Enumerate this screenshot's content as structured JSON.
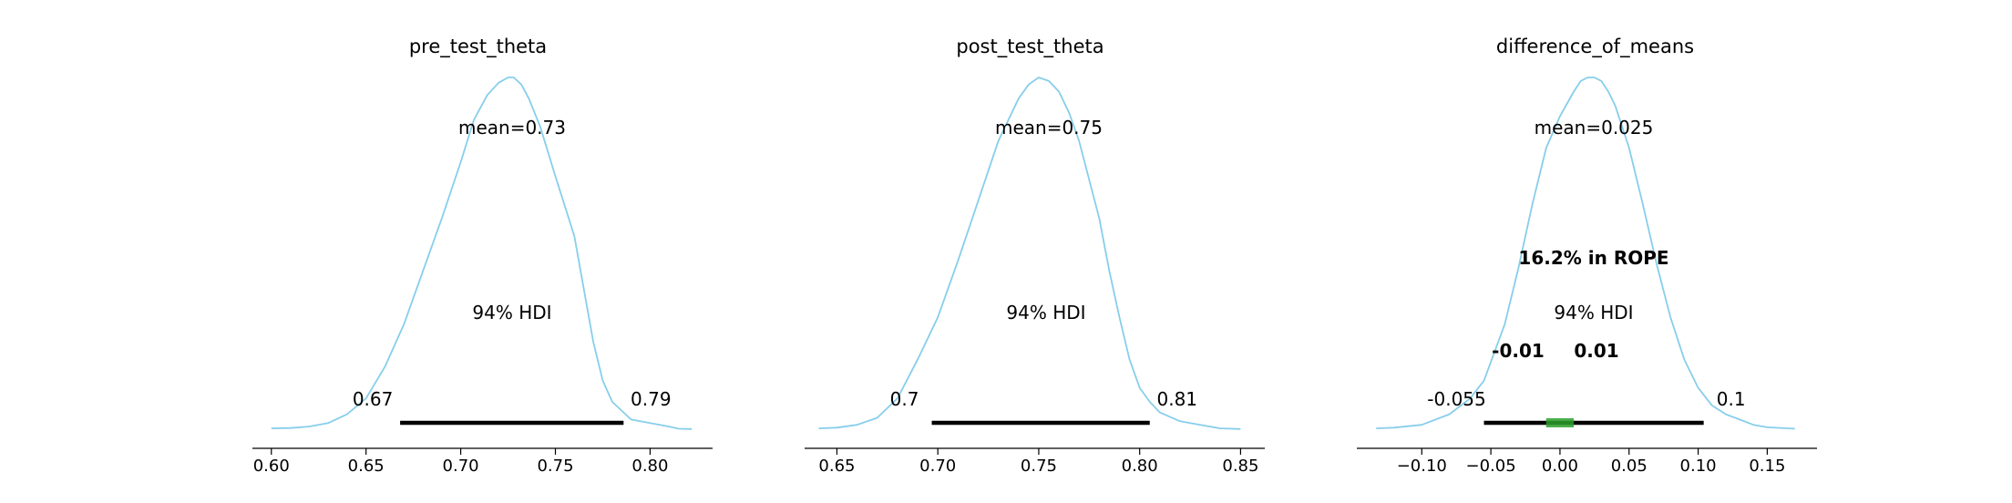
{
  "colors": {
    "density": "#87ceeb",
    "hdi": "#000000",
    "rope": "#2ca02c",
    "axis": "#000000"
  },
  "chart_data": [
    {
      "type": "area",
      "title": "pre_test_theta",
      "xlim": [
        0.59,
        0.833
      ],
      "xticks": [
        0.6,
        0.65,
        0.7,
        0.75,
        0.8
      ],
      "xtick_labels": [
        "0.60",
        "0.65",
        "0.70",
        "0.75",
        "0.80"
      ],
      "mean_label": "mean=0.73",
      "hdi_label": "94% HDI",
      "hdi": [
        0.668,
        0.786
      ],
      "hdi_labels": [
        "0.67",
        "0.79"
      ],
      "density": {
        "x": [
          0.6,
          0.61,
          0.62,
          0.63,
          0.64,
          0.65,
          0.66,
          0.67,
          0.68,
          0.69,
          0.7,
          0.707,
          0.714,
          0.72,
          0.725,
          0.728,
          0.732,
          0.736,
          0.742,
          0.75,
          0.76,
          0.765,
          0.77,
          0.775,
          0.78,
          0.786,
          0.79,
          0.8,
          0.81,
          0.815,
          0.822
        ],
        "y": [
          0.005,
          0.006,
          0.01,
          0.02,
          0.045,
          0.09,
          0.18,
          0.3,
          0.45,
          0.6,
          0.76,
          0.88,
          0.95,
          0.985,
          1.0,
          1.0,
          0.98,
          0.94,
          0.86,
          0.72,
          0.55,
          0.4,
          0.25,
          0.14,
          0.08,
          0.05,
          0.03,
          0.02,
          0.01,
          0.004,
          0.003
        ]
      }
    },
    {
      "type": "area",
      "title": "post_test_theta",
      "xlim": [
        0.634,
        0.862
      ],
      "xticks": [
        0.65,
        0.7,
        0.75,
        0.8,
        0.85
      ],
      "xtick_labels": [
        "0.65",
        "0.70",
        "0.75",
        "0.80",
        "0.85"
      ],
      "mean_label": "mean=0.75",
      "hdi_label": "94% HDI",
      "hdi": [
        0.697,
        0.805
      ],
      "hdi_labels": [
        "0.7",
        "0.81"
      ],
      "density": {
        "x": [
          0.641,
          0.65,
          0.66,
          0.67,
          0.68,
          0.69,
          0.7,
          0.71,
          0.72,
          0.73,
          0.74,
          0.745,
          0.75,
          0.755,
          0.76,
          0.765,
          0.77,
          0.78,
          0.785,
          0.79,
          0.795,
          0.8,
          0.805,
          0.81,
          0.82,
          0.83,
          0.84,
          0.85
        ],
        "y": [
          0.005,
          0.007,
          0.015,
          0.035,
          0.09,
          0.2,
          0.32,
          0.48,
          0.65,
          0.82,
          0.94,
          0.98,
          1.0,
          0.99,
          0.96,
          0.9,
          0.82,
          0.6,
          0.45,
          0.32,
          0.2,
          0.12,
          0.08,
          0.05,
          0.025,
          0.015,
          0.005,
          0.003
        ]
      }
    },
    {
      "type": "area",
      "title": "difference_of_means",
      "xlim": [
        -0.147,
        0.186
      ],
      "xticks": [
        -0.1,
        -0.05,
        0.0,
        0.05,
        0.1,
        0.15
      ],
      "xtick_labels": [
        "−0.10",
        "−0.05",
        "0.00",
        "0.05",
        "0.10",
        "0.15"
      ],
      "mean_label": "mean=0.025",
      "hdi_label": "94% HDI",
      "hdi": [
        -0.055,
        0.104
      ],
      "hdi_labels": [
        "-0.055",
        "0.1"
      ],
      "rope": [
        -0.01,
        0.01
      ],
      "rope_labels": [
        "-0.01",
        "0.01"
      ],
      "rope_text": "16.2% in ROPE",
      "density": {
        "x": [
          -0.133,
          -0.12,
          -0.1,
          -0.08,
          -0.065,
          -0.055,
          -0.04,
          -0.03,
          -0.02,
          -0.01,
          0.0,
          0.01,
          0.015,
          0.02,
          0.025,
          0.03,
          0.035,
          0.04,
          0.05,
          0.06,
          0.07,
          0.08,
          0.09,
          0.1,
          0.11,
          0.12,
          0.13,
          0.14,
          0.15,
          0.17
        ],
        "y": [
          0.005,
          0.007,
          0.015,
          0.045,
          0.09,
          0.14,
          0.3,
          0.46,
          0.64,
          0.8,
          0.89,
          0.96,
          0.99,
          1.0,
          1.0,
          0.99,
          0.96,
          0.92,
          0.8,
          0.64,
          0.47,
          0.32,
          0.2,
          0.12,
          0.07,
          0.045,
          0.03,
          0.015,
          0.008,
          0.004
        ]
      }
    }
  ]
}
